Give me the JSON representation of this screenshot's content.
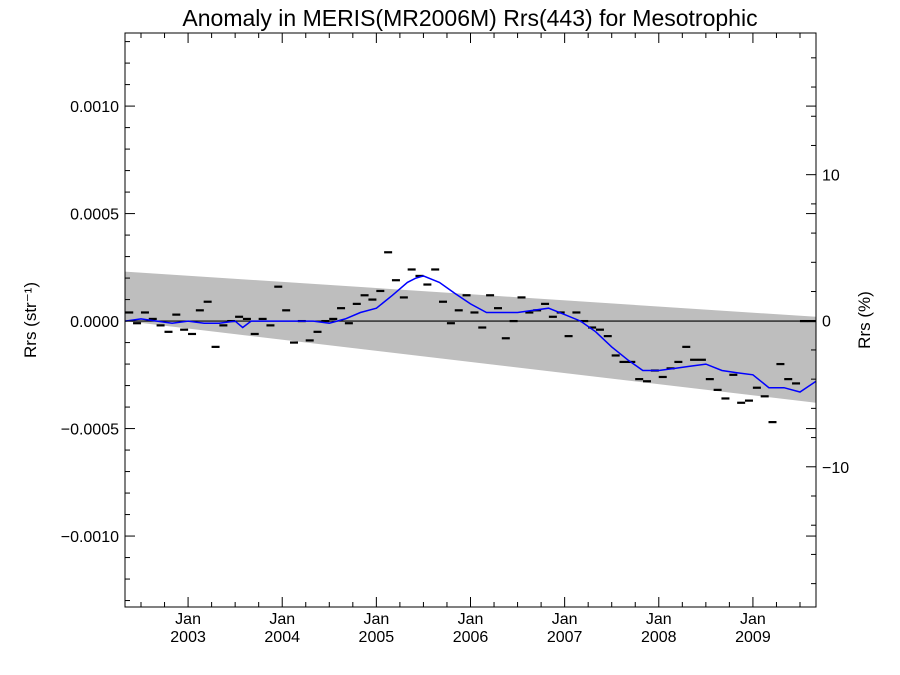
{
  "chart_data": {
    "type": "scatter",
    "title": "Anomaly in MERIS(MR2006M) Rrs(443) for Mesotrophic",
    "ylabel_left": "Rrs (str⁻¹)",
    "ylabel_right": "Rrs (%)",
    "xlabel": "",
    "ylim": [
      -0.00133,
      0.00134
    ],
    "xlim": [
      2002.33,
      2009.67
    ],
    "y2lim": [
      -19.6,
      19.7
    ],
    "yticks": [
      {
        "value": 0.001,
        "label": "0.0010"
      },
      {
        "value": 0.0005,
        "label": "0.0005"
      },
      {
        "value": 0.0,
        "label": "0.0000"
      },
      {
        "value": -0.0005,
        "label": "−0.0005"
      },
      {
        "value": -0.001,
        "label": "−0.0010"
      }
    ],
    "y2ticks": [
      {
        "value": 10,
        "label": "10"
      },
      {
        "value": 0,
        "label": "0"
      },
      {
        "value": -10,
        "label": "−10"
      }
    ],
    "xticks": [
      {
        "value": 2003.0,
        "label_top": "Jan",
        "label_bottom": "2003"
      },
      {
        "value": 2004.0,
        "label_top": "Jan",
        "label_bottom": "2004"
      },
      {
        "value": 2005.0,
        "label_top": "Jan",
        "label_bottom": "2005"
      },
      {
        "value": 2006.0,
        "label_top": "Jan",
        "label_bottom": "2006"
      },
      {
        "value": 2007.0,
        "label_top": "Jan",
        "label_bottom": "2007"
      },
      {
        "value": 2008.0,
        "label_top": "Jan",
        "label_bottom": "2008"
      },
      {
        "value": 2009.0,
        "label_top": "Jan",
        "label_bottom": "2009"
      }
    ],
    "band": {
      "x": [
        2002.33,
        2009.67
      ],
      "upper": [
        0.00023,
        2e-05
      ],
      "lower": [
        0.0,
        -0.00038
      ],
      "color": "#bebebe"
    },
    "zero_line": 0,
    "series": [
      {
        "kind": "monthly",
        "marker": "dash",
        "color": "#000000",
        "x": [
          2002.375,
          2002.458,
          2002.542,
          2002.625,
          2002.708,
          2002.792,
          2002.875,
          2002.958,
          2003.042,
          2003.125,
          2003.208,
          2003.292,
          2003.375,
          2003.458,
          2003.542,
          2003.625,
          2003.708,
          2003.792,
          2003.875,
          2003.958,
          2004.042,
          2004.125,
          2004.208,
          2004.292,
          2004.375,
          2004.458,
          2004.542,
          2004.625,
          2004.708,
          2004.792,
          2004.875,
          2004.958,
          2005.042,
          2005.125,
          2005.208,
          2005.292,
          2005.375,
          2005.458,
          2005.542,
          2005.625,
          2005.708,
          2005.792,
          2005.875,
          2005.958,
          2006.042,
          2006.125,
          2006.208,
          2006.292,
          2006.375,
          2006.458,
          2006.542,
          2006.625,
          2006.708,
          2006.792,
          2006.875,
          2006.958,
          2007.042,
          2007.125,
          2007.208,
          2007.292,
          2007.375,
          2007.458,
          2007.542,
          2007.625,
          2007.708,
          2007.792,
          2007.875,
          2007.958,
          2008.042,
          2008.125,
          2008.208,
          2008.292,
          2008.375,
          2008.458,
          2008.542,
          2008.625,
          2008.708,
          2008.792,
          2008.875,
          2008.958,
          2009.042,
          2009.125,
          2009.208,
          2009.292,
          2009.375,
          2009.458,
          2009.542,
          2009.625
        ],
        "y": [
          4e-05,
          -1e-05,
          4e-05,
          1e-05,
          -2e-05,
          -5e-05,
          3e-05,
          -4e-05,
          -6e-05,
          5e-05,
          9e-05,
          -0.00012,
          -2e-05,
          0.0,
          2e-05,
          1e-05,
          -6e-05,
          1e-05,
          -2e-05,
          0.00016,
          5e-05,
          -0.0001,
          0.0,
          -9e-05,
          -5e-05,
          0.0,
          1e-05,
          6e-05,
          -1e-05,
          8e-05,
          0.00012,
          0.0001,
          0.00014,
          0.00032,
          0.00019,
          0.00011,
          0.00024,
          0.00021,
          0.00017,
          0.00024,
          9e-05,
          -1e-05,
          5e-05,
          0.00012,
          4e-05,
          -3e-05,
          0.00012,
          6e-05,
          -8e-05,
          0.0,
          0.00011,
          4e-05,
          5e-05,
          8e-05,
          2e-05,
          4e-05,
          -7e-05,
          4e-05,
          0.0,
          -3e-05,
          -4e-05,
          -7e-05,
          -0.00016,
          -0.00019,
          -0.00019,
          -0.00027,
          -0.00028,
          -0.00023,
          -0.00026,
          -0.00022,
          -0.00019,
          -0.00012,
          -0.00018,
          -0.00018,
          -0.00027,
          -0.00032,
          -0.00036,
          -0.00025,
          -0.00038,
          -0.00037,
          -0.00031,
          -0.00035,
          -0.00047,
          -0.0002,
          -0.00027,
          -0.00029,
          0.0,
          0.0
        ]
      },
      {
        "kind": "running-mean",
        "marker": "line",
        "color": "#0000ff",
        "x": [
          2002.33,
          2002.5,
          2002.67,
          2002.83,
          2003.0,
          2003.17,
          2003.33,
          2003.5,
          2003.58,
          2003.67,
          2003.83,
          2004.0,
          2004.17,
          2004.33,
          2004.5,
          2004.67,
          2004.83,
          2005.0,
          2005.17,
          2005.33,
          2005.42,
          2005.5,
          2005.67,
          2005.83,
          2006.0,
          2006.17,
          2006.33,
          2006.5,
          2006.67,
          2006.83,
          2007.0,
          2007.17,
          2007.33,
          2007.5,
          2007.67,
          2007.83,
          2008.0,
          2008.17,
          2008.33,
          2008.5,
          2008.67,
          2008.83,
          2009.0,
          2009.17,
          2009.33,
          2009.5,
          2009.67
        ],
        "y": [
          0.0,
          1e-05,
          0.0,
          -1e-05,
          0.0,
          -1e-05,
          -1e-05,
          0.0,
          -3e-05,
          0.0,
          0.0,
          0.0,
          0.0,
          0.0,
          -1e-05,
          1e-05,
          4e-05,
          6e-05,
          0.00012,
          0.00018,
          0.0002,
          0.00021,
          0.00018,
          0.00013,
          8e-05,
          4e-05,
          4e-05,
          4e-05,
          5e-05,
          6e-05,
          3e-05,
          0.0,
          -5e-05,
          -0.00012,
          -0.00018,
          -0.00023,
          -0.00023,
          -0.00022,
          -0.00021,
          -0.0002,
          -0.00023,
          -0.00024,
          -0.00025,
          -0.00031,
          -0.00031,
          -0.00033,
          -0.00028
        ]
      }
    ],
    "grid": false,
    "legend": "none"
  }
}
